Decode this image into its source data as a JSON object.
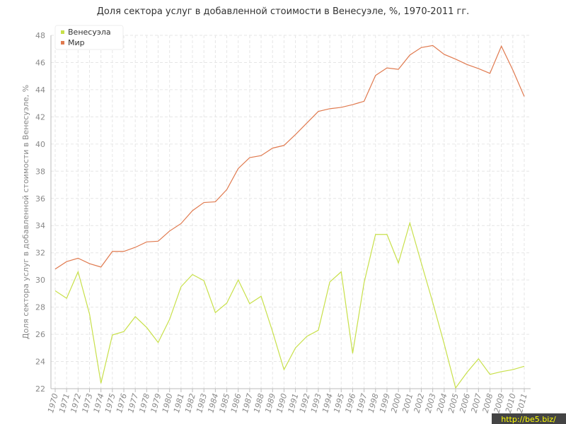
{
  "chart_data": {
    "type": "line",
    "title": "Доля сектора услуг в добавленной стоимости в Венесуэле, %, 1970-2011 гг.",
    "y_label": "Доля сектора услуг в добавленной стоимости в Венесуэле, %",
    "categories": [
      "1970",
      "1971",
      "1972",
      "1973",
      "1974",
      "1975",
      "1976",
      "1977",
      "1978",
      "1979",
      "1980",
      "1981",
      "1982",
      "1983",
      "1984",
      "1985",
      "1986",
      "1987",
      "1988",
      "1989",
      "1990",
      "1991",
      "1992",
      "1993",
      "1994",
      "1995",
      "1996",
      "1997",
      "1998",
      "1999",
      "2000",
      "2001",
      "2002",
      "2003",
      "2004",
      "2005",
      "2006",
      "2007",
      "2008",
      "2009",
      "2010",
      "2011"
    ],
    "series": [
      {
        "name": "Венесуэла",
        "color": "#c8e04a",
        "values": [
          29.2,
          28.65,
          30.6,
          27.5,
          22.4,
          25.95,
          26.2,
          27.3,
          26.5,
          25.4,
          27.1,
          29.5,
          30.4,
          29.95,
          27.6,
          28.3,
          30.0,
          28.25,
          28.8,
          26.2,
          23.4,
          25.0,
          25.85,
          26.3,
          29.85,
          30.6,
          24.6,
          29.8,
          33.35,
          33.35,
          31.25,
          34.2,
          31.25,
          28.35,
          25.3,
          22.05,
          23.2,
          24.2,
          23.05,
          23.25,
          23.4,
          23.65
        ]
      },
      {
        "name": "Мир",
        "color": "#e07a4f",
        "values": [
          30.8,
          31.35,
          31.6,
          31.2,
          30.95,
          32.1,
          32.1,
          32.4,
          32.8,
          32.85,
          33.6,
          34.15,
          35.1,
          35.7,
          35.75,
          36.65,
          38.2,
          39.0,
          39.15,
          39.7,
          39.9,
          40.7,
          41.55,
          42.4,
          42.6,
          42.7,
          42.9,
          43.15,
          45.05,
          45.6,
          45.5,
          46.55,
          47.1,
          47.25,
          46.6,
          46.25,
          45.85,
          45.55,
          45.2,
          47.2,
          45.45,
          43.5
        ]
      }
    ],
    "ylim": [
      22,
      48
    ],
    "yticks": [
      22,
      24,
      26,
      28,
      30,
      32,
      34,
      36,
      38,
      40,
      42,
      44,
      46,
      48
    ],
    "grid": true,
    "legend": "top-left",
    "watermark": "http://be5.biz/"
  }
}
